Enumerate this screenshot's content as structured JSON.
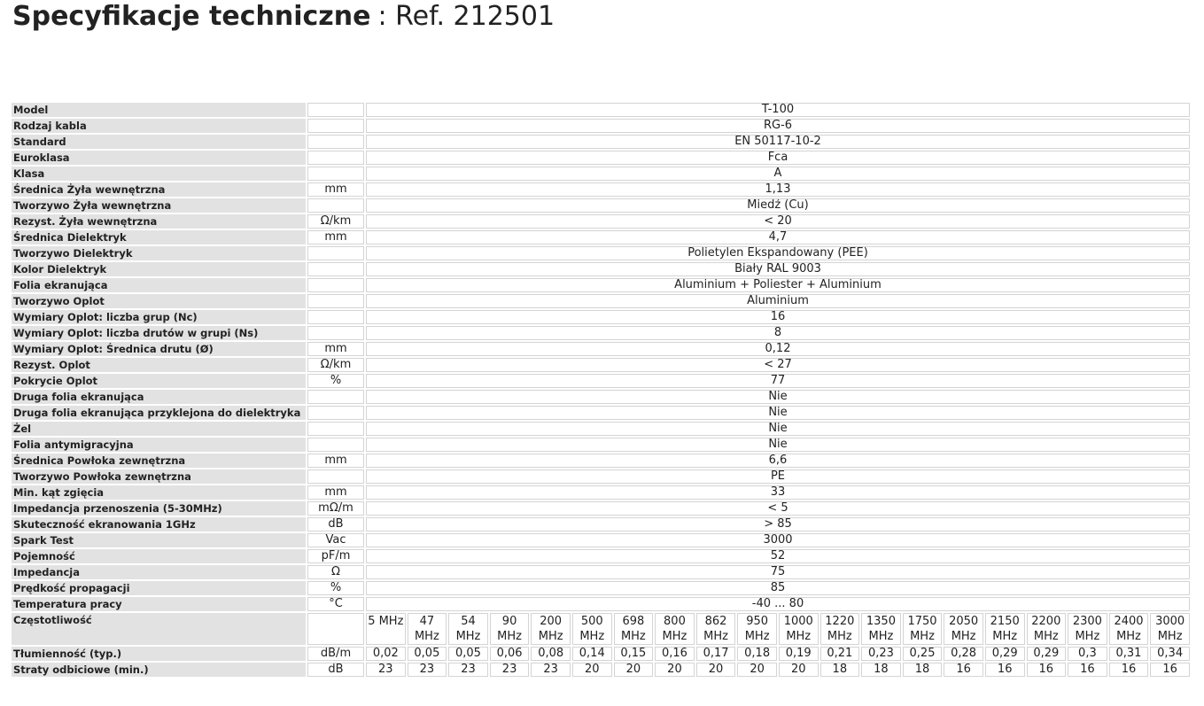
{
  "header": {
    "title": "Specyfikacje techniczne",
    "ref": ": Ref. 212501"
  },
  "table": {
    "rows": [
      {
        "label": "Model",
        "value": "T-100"
      },
      {
        "label": "Rodzaj kabla",
        "value": "RG-6"
      },
      {
        "label": "Standard",
        "value": "EN 50117-10-2"
      },
      {
        "label": "Euroklasa",
        "value": "Fca"
      },
      {
        "label": "Klasa",
        "value": "A"
      },
      {
        "label": "Średnica Żyła wewnętrzna",
        "unit": "mm",
        "value": "1,13"
      },
      {
        "label": "Tworzywo Żyła wewnętrzna",
        "value": "Miedź (Cu)"
      },
      {
        "label": "Rezyst. Żyła wewnętrzna",
        "unit": "Ω/km",
        "value": "< 20"
      },
      {
        "label": "Średnica Dielektryk",
        "unit": "mm",
        "value": "4,7"
      },
      {
        "label": "Tworzywo Dielektryk",
        "value": "Polietylen Ekspandowany (PEE)"
      },
      {
        "label": "Kolor Dielektryk",
        "value": "Biały RAL 9003"
      },
      {
        "label": "Folia ekranująca",
        "value": "Aluminium + Poliester + Aluminium"
      },
      {
        "label": "Tworzywo Oplot",
        "value": "Aluminium"
      },
      {
        "label": "Wymiary Oplot: liczba grup (Nc)",
        "value": "16"
      },
      {
        "label": "Wymiary Oplot: liczba drutów w grupi (Ns)",
        "value": "8"
      },
      {
        "label": "Wymiary Oplot: Średnica drutu (Ø)",
        "unit": "mm",
        "value": "0,12"
      },
      {
        "label": "Rezyst. Oplot",
        "unit": "Ω/km",
        "value": "< 27"
      },
      {
        "label": "Pokrycie Oplot",
        "unit": "%",
        "value": "77"
      },
      {
        "label": "Druga folia ekranująca",
        "value": "Nie"
      },
      {
        "label": "Druga folia ekranująca przyklejona do dielektryka",
        "value": "Nie"
      },
      {
        "label": "Żel",
        "value": "Nie"
      },
      {
        "label": "Folia antymigracyjna",
        "value": "Nie"
      },
      {
        "label": "Średnica Powłoka zewnętrzna",
        "unit": "mm",
        "value": "6,6"
      },
      {
        "label": "Tworzywo Powłoka zewnętrzna",
        "value": "PE"
      },
      {
        "label": "Min. kąt zgięcia",
        "unit": "mm",
        "value": "33"
      },
      {
        "label": "Impedancja przenoszenia (5-30MHz)",
        "unit": "mΩ/m",
        "value": "< 5"
      },
      {
        "label": "Skuteczność ekranowania 1GHz",
        "unit": "dB",
        "value": "> 85"
      },
      {
        "label": "Spark Test",
        "unit": "Vac",
        "value": "3000"
      },
      {
        "label": "Pojemność",
        "unit": "pF/m",
        "value": "52"
      },
      {
        "label": "Impedancja",
        "unit": "Ω",
        "value": "75"
      },
      {
        "label": "Prędkość propagacji",
        "unit": "%",
        "value": "85"
      },
      {
        "label": "Temperatura pracy",
        "unit": "°C",
        "value": "-40 ... 80"
      }
    ],
    "frequency": {
      "label": "Częstotliwość",
      "values": [
        "5 MHz",
        "47 MHz",
        "54 MHz",
        "90 MHz",
        "200 MHz",
        "500 MHz",
        "698 MHz",
        "800 MHz",
        "862 MHz",
        "950 MHz",
        "1000 MHz",
        "1220 MHz",
        "1350 MHz",
        "1750 MHz",
        "2050 MHz",
        "2150 MHz",
        "2200 MHz",
        "2300 MHz",
        "2400 MHz",
        "3000 MHz"
      ]
    },
    "attenuation": {
      "label": "Tłumienność (typ.)",
      "unit": "dB/m",
      "values": [
        "0,02",
        "0,05",
        "0,05",
        "0,06",
        "0,08",
        "0,14",
        "0,15",
        "0,16",
        "0,17",
        "0,18",
        "0,19",
        "0,21",
        "0,23",
        "0,25",
        "0,28",
        "0,29",
        "0,29",
        "0,3",
        "0,31",
        "0,34"
      ]
    },
    "return_loss": {
      "label": "Straty odbiciowe (min.)",
      "unit": "dB",
      "values": [
        "23",
        "23",
        "23",
        "23",
        "23",
        "20",
        "20",
        "20",
        "20",
        "20",
        "20",
        "18",
        "18",
        "18",
        "16",
        "16",
        "16",
        "16",
        "16",
        "16"
      ]
    }
  }
}
